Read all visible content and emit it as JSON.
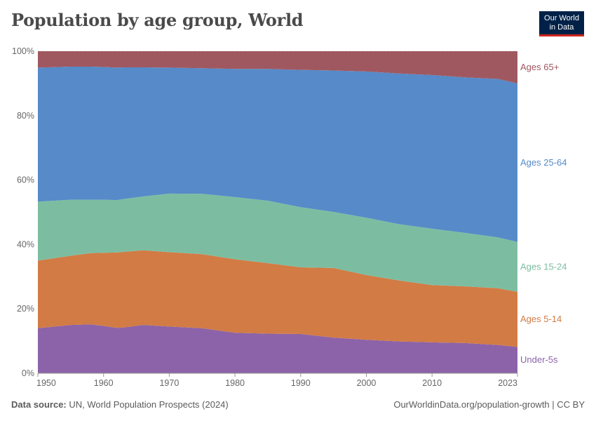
{
  "header": {
    "title": "Population by age group, World",
    "logo_line1": "Our World",
    "logo_line2": "in Data"
  },
  "footer": {
    "source_label": "Data source:",
    "source_text": "UN, World Population Prospects (2024)",
    "url": "OurWorldinData.org/population-growth | CC BY"
  },
  "chart_data": {
    "type": "area",
    "stacked": true,
    "normalized": true,
    "title": "Population by age group, World",
    "xlabel": "",
    "ylabel": "",
    "xlim": [
      1950,
      2023
    ],
    "ylim": [
      0,
      100
    ],
    "x_ticks": [
      1950,
      1960,
      1970,
      1980,
      1990,
      2000,
      2010,
      2023
    ],
    "x_tick_labels": [
      "1950",
      "1960",
      "1970",
      "1980",
      "1990",
      "2000",
      "2010",
      "2023"
    ],
    "y_ticks": [
      0,
      20,
      40,
      60,
      80,
      100
    ],
    "y_tick_labels": [
      "0%",
      "20%",
      "40%",
      "60%",
      "80%",
      "100%"
    ],
    "x": [
      1950,
      1955,
      1958,
      1960,
      1962,
      1963,
      1966,
      1970,
      1975,
      1980,
      1985,
      1990,
      1995,
      2000,
      2005,
      2010,
      2015,
      2020,
      2023
    ],
    "series": [
      {
        "name": "Under-5s",
        "label": "Under-5s",
        "color": "#8c63a8",
        "values": [
          14.0,
          15.0,
          15.2,
          14.7,
          14.1,
          14.2,
          15.0,
          14.5,
          14.0,
          12.6,
          12.3,
          12.2,
          11.1,
          10.4,
          9.9,
          9.6,
          9.4,
          8.8,
          8.2
        ]
      },
      {
        "name": "Ages 5-14",
        "label": "Ages 5-14",
        "color": "#d27b45",
        "values": [
          21.0,
          21.5,
          22.1,
          22.7,
          23.4,
          23.5,
          23.2,
          23.1,
          23.0,
          22.8,
          21.9,
          20.7,
          21.6,
          20.1,
          18.9,
          17.8,
          17.6,
          17.6,
          17.1
        ]
      },
      {
        "name": "Ages 15-24",
        "label": "Ages 15-24",
        "color": "#7cbda1",
        "values": [
          18.3,
          17.4,
          16.6,
          16.5,
          16.3,
          16.4,
          16.7,
          18.2,
          18.7,
          19.3,
          19.4,
          18.7,
          17.4,
          17.8,
          17.5,
          17.5,
          16.6,
          15.8,
          15.5
        ]
      },
      {
        "name": "Ages 25-64",
        "label": "Ages 25-64",
        "color": "#568ac8",
        "values": [
          41.6,
          41.3,
          41.3,
          41.2,
          41.1,
          40.9,
          40.1,
          39.1,
          39.0,
          39.8,
          40.9,
          42.6,
          43.9,
          45.4,
          46.8,
          47.7,
          48.3,
          49.2,
          49.2
        ]
      },
      {
        "name": "Ages 65+",
        "label": "Ages 65+",
        "color": "#a05860",
        "values": [
          5.1,
          4.8,
          4.8,
          4.9,
          5.1,
          5.0,
          5.0,
          5.1,
          5.3,
          5.5,
          5.5,
          5.8,
          6.0,
          6.3,
          6.9,
          7.4,
          8.1,
          8.6,
          10.0
        ]
      }
    ],
    "legend": "inline-right"
  }
}
